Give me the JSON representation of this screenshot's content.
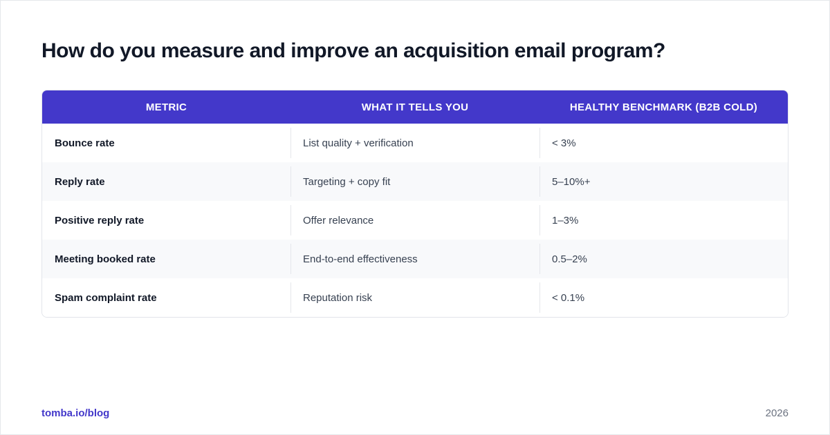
{
  "title": "How do you measure and improve an acquisition email program?",
  "table": {
    "headers": [
      "METRIC",
      "WHAT IT TELLS YOU",
      "HEALTHY BENCHMARK (B2B COLD)"
    ],
    "rows": [
      [
        "Bounce rate",
        "List quality + verification",
        "< 3%"
      ],
      [
        "Reply rate",
        "Targeting + copy fit",
        "5–10%+"
      ],
      [
        "Positive reply rate",
        "Offer relevance",
        "1–3%"
      ],
      [
        "Meeting booked rate",
        "End-to-end effectiveness",
        "0.5–2%"
      ],
      [
        "Spam complaint rate",
        "Reputation risk",
        "< 0.1%"
      ]
    ]
  },
  "footer": {
    "link": "tomba.io/blog",
    "year": "2026"
  },
  "colors": {
    "accent": "#4338ca",
    "title": "#111827",
    "row_alt": "#f8f9fb"
  }
}
